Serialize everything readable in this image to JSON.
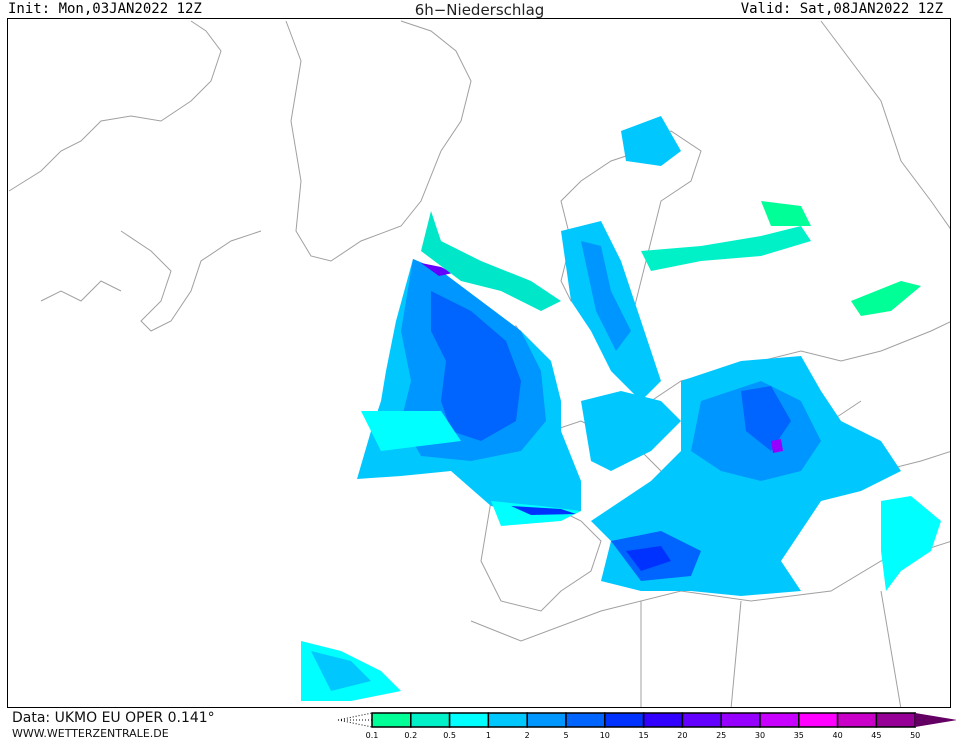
{
  "header": {
    "init": "Init: Mon,03JAN2022 12Z",
    "title": "6h−Niederschlag",
    "valid": "Valid: Sat,08JAN2022 12Z"
  },
  "footer": {
    "data_source": "Data: UKMO EU OPER 0.141°",
    "website": "WWW.WETTERZENTRALE.DE"
  },
  "legend": {
    "labels": [
      "0.1",
      "0.2",
      "0.5",
      "1",
      "2",
      "5",
      "10",
      "15",
      "20",
      "25",
      "30",
      "35",
      "40",
      "45",
      "50"
    ],
    "colors": [
      "#00ff96",
      "#00f0c8",
      "#00ffff",
      "#00c8ff",
      "#0096ff",
      "#0064ff",
      "#0032ff",
      "#3200ff",
      "#6400ff",
      "#9600ff",
      "#c800ff",
      "#ff00ff",
      "#c800c8",
      "#960096"
    ],
    "overflow_color": "#640064"
  },
  "map": {
    "coastline_color": "#a0a0a0",
    "border_color": "#a0a0a0"
  }
}
